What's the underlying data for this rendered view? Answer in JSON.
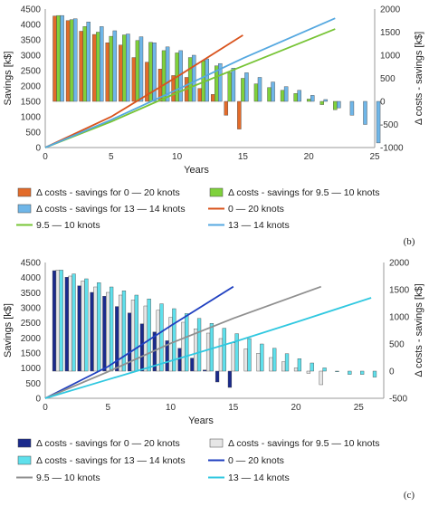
{
  "chart_data": [
    {
      "panel_label": "(b)",
      "type": "bar",
      "xlabel": "Years",
      "ylabel": "Savings [k$]",
      "ylabel_right": "Δ costs - savings [k$]",
      "xlim": [
        0,
        25
      ],
      "ylim": [
        0,
        4500
      ],
      "ylim_right": [
        -1000,
        2000
      ],
      "x_ticks": [
        0,
        5,
        10,
        15,
        20,
        25
      ],
      "y_ticks": [
        0,
        500,
        1000,
        1500,
        2000,
        2500,
        3000,
        3500,
        4000,
        4500
      ],
      "y2_ticks": [
        -1000,
        -500,
        0,
        500,
        1000,
        1500,
        2000
      ],
      "bar_series": [
        {
          "name": "Δ costs - savings for 0 — 20 knots",
          "color": "#e26b2a",
          "x": [
            1,
            2,
            3,
            4,
            5,
            6,
            7,
            8,
            9,
            10,
            11,
            12,
            13,
            14,
            15
          ],
          "values": [
            1850,
            1750,
            1520,
            1450,
            1270,
            1220,
            950,
            850,
            700,
            560,
            520,
            280,
            150,
            -300,
            -600
          ]
        },
        {
          "name": "Δ costs - savings for 9.5 — 10 knots",
          "color": "#7fd13b",
          "x": [
            1,
            2,
            3,
            4,
            5,
            6,
            7,
            8,
            9,
            10,
            11,
            12,
            13,
            14,
            15,
            16,
            17,
            18,
            19,
            20,
            21,
            22
          ],
          "values": [
            1860,
            1770,
            1620,
            1500,
            1410,
            1440,
            1320,
            1280,
            1100,
            1050,
            950,
            880,
            770,
            620,
            500,
            380,
            300,
            240,
            170,
            50,
            -70,
            -180
          ]
        },
        {
          "name": "Δ costs - savings for 13 — 14 knots",
          "color": "#6fb6e8",
          "x": [
            1,
            2,
            3,
            4,
            5,
            6,
            7,
            8,
            9,
            10,
            11,
            12,
            13,
            14,
            15,
            16,
            17,
            18,
            19,
            20,
            21,
            22,
            23,
            24,
            25
          ],
          "values": [
            1860,
            1790,
            1720,
            1620,
            1530,
            1460,
            1400,
            1270,
            1180,
            1100,
            1000,
            920,
            820,
            720,
            620,
            520,
            420,
            320,
            240,
            130,
            40,
            -140,
            -300,
            -500,
            -900
          ]
        }
      ],
      "line_series": [
        {
          "name": "0 — 20 knots",
          "color": "#d9541e",
          "x": [
            0,
            5,
            10,
            15
          ],
          "values": [
            0,
            1000,
            2300,
            3650
          ]
        },
        {
          "name": "9.5 — 10 knots",
          "color": "#77c435",
          "x": [
            0,
            5,
            10,
            15,
            22
          ],
          "values": [
            0,
            840,
            1780,
            2650,
            3850
          ]
        },
        {
          "name": "13 — 14 knots",
          "color": "#55a8e0",
          "x": [
            0,
            5,
            10,
            15,
            22
          ],
          "values": [
            0,
            900,
            1880,
            2900,
            4200
          ]
        }
      ]
    },
    {
      "panel_label": "(c)",
      "type": "bar",
      "xlabel": "Years",
      "ylabel": "Savings [k$]",
      "ylabel_right": "Δ costs - savings [k$]",
      "xlim": [
        0,
        27
      ],
      "ylim": [
        0,
        4500
      ],
      "ylim_right": [
        -500,
        2000
      ],
      "x_ticks": [
        0,
        5,
        10,
        15,
        20,
        25
      ],
      "y_ticks": [
        0,
        500,
        1000,
        1500,
        2000,
        2500,
        3000,
        3500,
        4000,
        4500
      ],
      "y2_ticks": [
        -500,
        0,
        500,
        1000,
        1500,
        2000
      ],
      "bar_series": [
        {
          "name": "Δ costs - savings for 0 — 20 knots",
          "color": "#1a2a8c",
          "x": [
            1,
            2,
            3,
            4,
            5,
            6,
            7,
            8,
            9,
            10,
            11,
            12,
            13,
            14,
            15
          ],
          "values": [
            1850,
            1730,
            1570,
            1450,
            1380,
            1190,
            1070,
            870,
            720,
            560,
            420,
            240,
            20,
            -200,
            -300
          ]
        },
        {
          "name": "Δ costs - savings for 9.5 — 10 knots",
          "color": "#e6e6e6",
          "x": [
            1,
            2,
            3,
            4,
            5,
            6,
            7,
            8,
            9,
            10,
            11,
            12,
            13,
            14,
            15,
            16,
            17,
            18,
            19,
            20,
            21,
            22
          ],
          "values": [
            1860,
            1750,
            1660,
            1550,
            1450,
            1400,
            1310,
            1200,
            1120,
            990,
            900,
            780,
            700,
            600,
            520,
            410,
            330,
            250,
            170,
            60,
            -40,
            -250
          ]
        },
        {
          "name": "Δ costs - savings for 13 — 14 knots",
          "color": "#5fe0ec",
          "x": [
            1,
            2,
            3,
            4,
            5,
            6,
            7,
            8,
            9,
            10,
            11,
            12,
            13,
            14,
            15,
            16,
            17,
            18,
            19,
            20,
            21,
            22,
            23,
            24,
            25,
            26
          ],
          "values": [
            1860,
            1790,
            1700,
            1630,
            1550,
            1480,
            1400,
            1330,
            1240,
            1150,
            1060,
            970,
            880,
            790,
            690,
            600,
            500,
            420,
            320,
            230,
            150,
            60,
            -10,
            -60,
            -60,
            -110
          ]
        }
      ],
      "line_series": [
        {
          "name": "0 — 20 knots",
          "color": "#2040c0",
          "x": [
            0,
            5,
            10,
            15
          ],
          "values": [
            0,
            1050,
            2400,
            3700
          ]
        },
        {
          "name": "9.5 — 10 knots",
          "color": "#8f8f8f",
          "x": [
            0,
            5,
            10,
            15,
            22
          ],
          "values": [
            0,
            880,
            1820,
            2650,
            3700
          ]
        },
        {
          "name": "13 — 14 knots",
          "color": "#30c8e0",
          "x": [
            0,
            5,
            10,
            15,
            20,
            26
          ],
          "values": [
            0,
            620,
            1240,
            1860,
            2520,
            3330
          ]
        }
      ]
    }
  ]
}
